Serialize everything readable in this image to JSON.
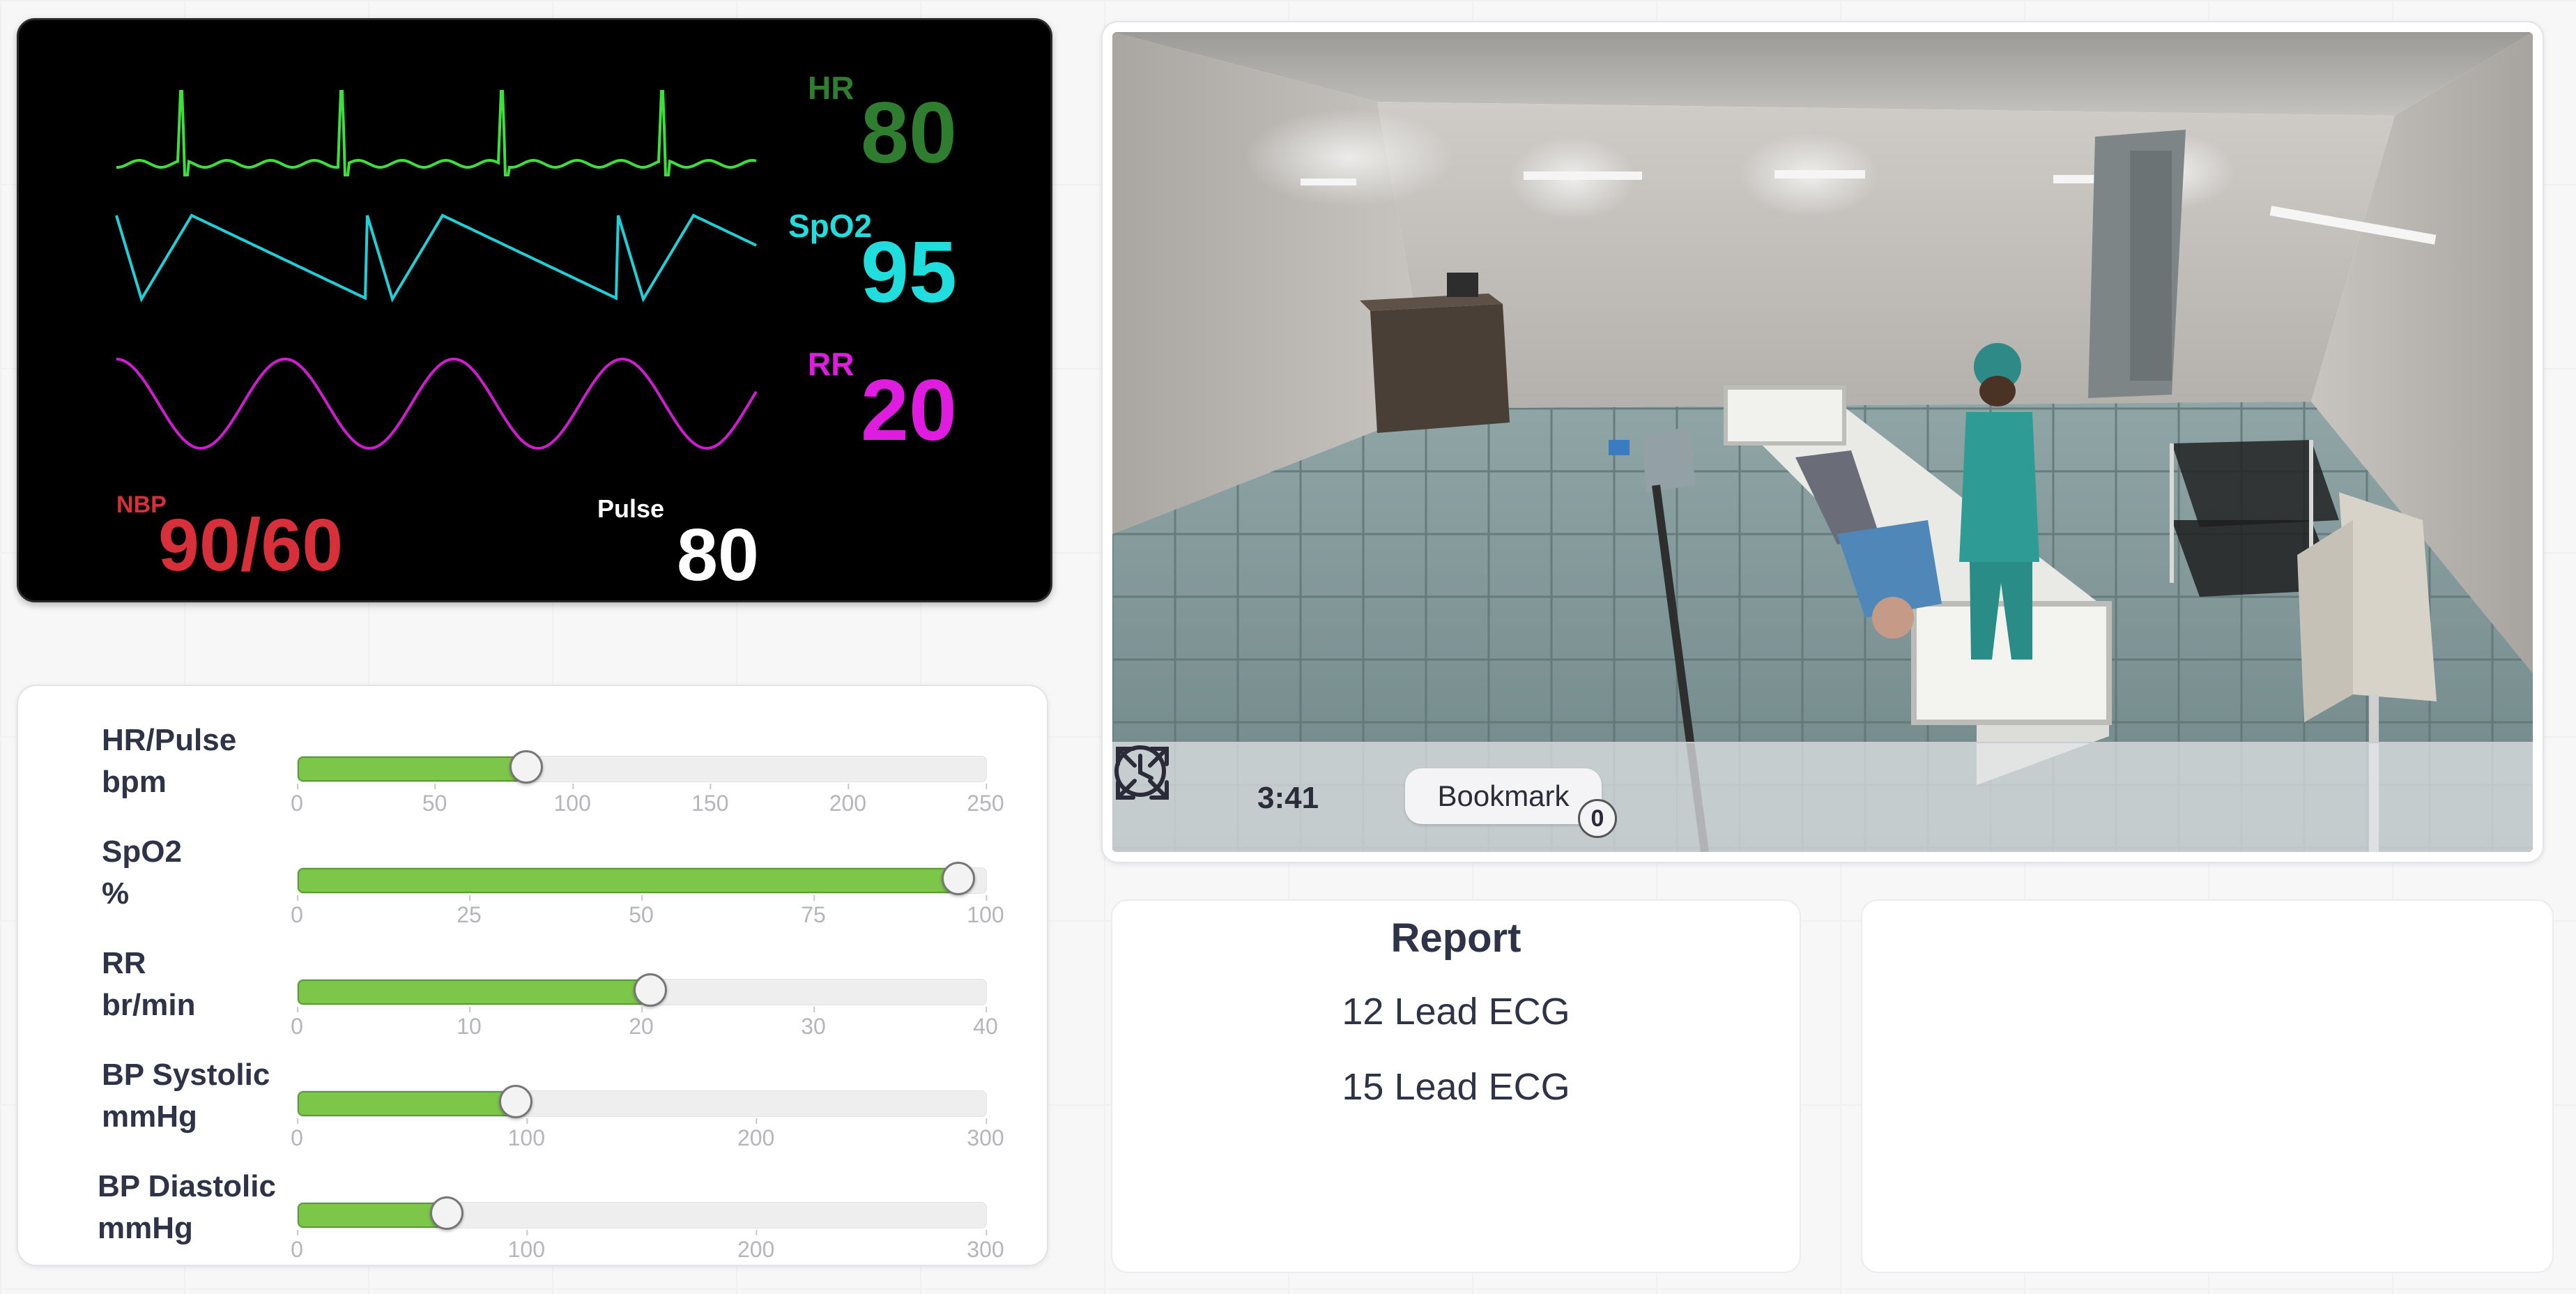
{
  "monitor": {
    "hr": {
      "label": "HR",
      "value": "80",
      "color": "#2f7d2f"
    },
    "spo2": {
      "label": "SpO2",
      "value": "95",
      "color": "#20dede"
    },
    "rr": {
      "label": "RR",
      "value": "20",
      "color": "#e01ce0"
    },
    "nbp": {
      "label": "NBP",
      "value": "90/60",
      "color": "#d8303a"
    },
    "pulse": {
      "label": "Pulse",
      "value": "80",
      "color": "#ffffff"
    }
  },
  "sliders": [
    {
      "label_line1": "HR/Pulse",
      "label_line2": "bpm",
      "min": 0,
      "max": 250,
      "value": 83,
      "ticks": [
        "0",
        "50",
        "100",
        "150",
        "200",
        "250"
      ]
    },
    {
      "label_line1": "SpO2",
      "label_line2": "%",
      "min": 0,
      "max": 100,
      "value": 96,
      "ticks": [
        "0",
        "25",
        "50",
        "75",
        "100"
      ]
    },
    {
      "label_line1": "RR",
      "label_line2": "br/min",
      "min": 0,
      "max": 40,
      "value": 20.5,
      "ticks": [
        "0",
        "10",
        "20",
        "30",
        "40"
      ]
    },
    {
      "label_line1": "BP Systolic",
      "label_line2": "mmHg",
      "min": 0,
      "max": 300,
      "value": 95,
      "ticks": [
        "0",
        "100",
        "200",
        "300"
      ]
    },
    {
      "label_line1": "BP Diastolic",
      "label_line2": "mmHg",
      "min": 0,
      "max": 300,
      "value": 65,
      "ticks": [
        "0",
        "100",
        "200",
        "300"
      ]
    }
  ],
  "scene": {
    "timer": "3:41",
    "bookmark_label": "Bookmark",
    "bookmark_count": "0",
    "icons": [
      "clock-icon",
      "expand-icon"
    ]
  },
  "report": {
    "title": "Report",
    "items": [
      "12 Lead ECG",
      "15 Lead ECG"
    ]
  },
  "colors": {
    "slider_fill": "#7cc64a",
    "monitor_bg": "#000000"
  }
}
